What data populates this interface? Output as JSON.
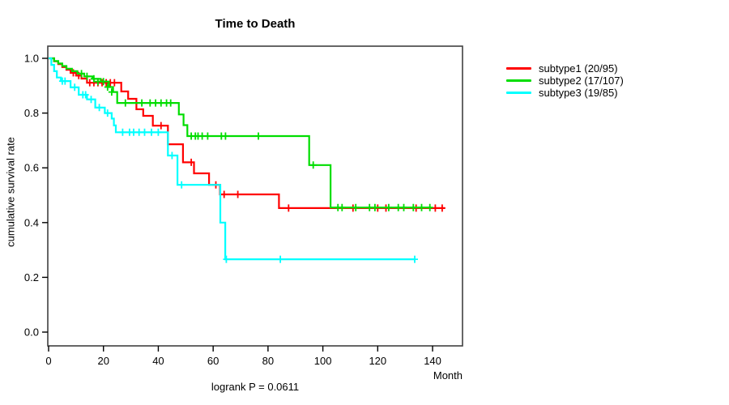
{
  "title": "Time to Death",
  "footer": {
    "logrank_label": "logrank P = 0.0611"
  },
  "axes": {
    "x_label": "Month",
    "y_label": "cumulative survival rate",
    "x_ticks": [
      0,
      20,
      40,
      60,
      80,
      100,
      120,
      140
    ],
    "y_ticks": [
      "0.0",
      "0.2",
      "0.4",
      "0.6",
      "0.8",
      "1.0"
    ]
  },
  "chart_data": {
    "type": "line",
    "variant": "kaplan-meier-step",
    "title": "Time to Death",
    "xlabel": "Month",
    "ylabel": "cumulative survival rate",
    "xlim": [
      0,
      151
    ],
    "ylim": [
      0.0,
      1.0
    ],
    "grid": false,
    "legend_position": "right-outside",
    "annotation": "logrank P = 0.0611",
    "series": [
      {
        "name": "subtype1",
        "label": "subtype1 (20/95)",
        "events": 20,
        "n": 95,
        "color": "#ff0000",
        "end_month": 144.5,
        "steps": [
          [
            0,
            1.0
          ],
          [
            2,
            0.989
          ],
          [
            3.5,
            0.979
          ],
          [
            5,
            0.968
          ],
          [
            6.5,
            0.958
          ],
          [
            8,
            0.947
          ],
          [
            10,
            0.937
          ],
          [
            12,
            0.926
          ],
          [
            14,
            0.911
          ],
          [
            26.5,
            0.879
          ],
          [
            29,
            0.852
          ],
          [
            32,
            0.814
          ],
          [
            34.5,
            0.79
          ],
          [
            38,
            0.754
          ],
          [
            43.5,
            0.686
          ],
          [
            49,
            0.62
          ],
          [
            53,
            0.58
          ],
          [
            58.5,
            0.538
          ],
          [
            62.5,
            0.503
          ],
          [
            84,
            0.453
          ]
        ],
        "censors": [
          [
            9,
            0.947
          ],
          [
            11,
            0.937
          ],
          [
            15,
            0.911
          ],
          [
            16.5,
            0.911
          ],
          [
            18,
            0.911
          ],
          [
            19.5,
            0.911
          ],
          [
            21,
            0.911
          ],
          [
            22.5,
            0.911
          ],
          [
            24,
            0.911
          ],
          [
            41,
            0.754
          ],
          [
            52,
            0.62
          ],
          [
            61,
            0.538
          ],
          [
            64,
            0.503
          ],
          [
            69,
            0.503
          ],
          [
            87.5,
            0.453
          ],
          [
            111,
            0.453
          ],
          [
            120,
            0.453
          ],
          [
            123,
            0.453
          ],
          [
            134,
            0.453
          ],
          [
            141,
            0.453
          ],
          [
            143.5,
            0.453
          ]
        ]
      },
      {
        "name": "subtype2",
        "label": "subtype2 (17/107)",
        "events": 17,
        "n": 107,
        "color": "#00dd00",
        "end_month": 139.5,
        "steps": [
          [
            0,
            1.0
          ],
          [
            2,
            0.99
          ],
          [
            3.5,
            0.981
          ],
          [
            5,
            0.972
          ],
          [
            6.5,
            0.962
          ],
          [
            8.5,
            0.953
          ],
          [
            10.5,
            0.944
          ],
          [
            13,
            0.934
          ],
          [
            16,
            0.925
          ],
          [
            19,
            0.915
          ],
          [
            22,
            0.895
          ],
          [
            23.5,
            0.877
          ],
          [
            25,
            0.837
          ],
          [
            47.5,
            0.795
          ],
          [
            49.2,
            0.756
          ],
          [
            50.6,
            0.716
          ],
          [
            95,
            0.61
          ],
          [
            102.8,
            0.455
          ]
        ],
        "censors": [
          [
            12,
            0.944
          ],
          [
            14,
            0.934
          ],
          [
            16.5,
            0.925
          ],
          [
            18,
            0.915
          ],
          [
            20,
            0.915
          ],
          [
            21.5,
            0.895
          ],
          [
            23,
            0.877
          ],
          [
            28,
            0.837
          ],
          [
            34,
            0.837
          ],
          [
            37,
            0.837
          ],
          [
            39,
            0.837
          ],
          [
            41,
            0.837
          ],
          [
            43,
            0.837
          ],
          [
            44.5,
            0.837
          ],
          [
            52,
            0.716
          ],
          [
            53.5,
            0.716
          ],
          [
            54.5,
            0.716
          ],
          [
            56,
            0.716
          ],
          [
            58,
            0.716
          ],
          [
            63,
            0.716
          ],
          [
            64.5,
            0.716
          ],
          [
            76.5,
            0.716
          ],
          [
            96.5,
            0.61
          ],
          [
            105.5,
            0.455
          ],
          [
            107,
            0.455
          ],
          [
            112,
            0.455
          ],
          [
            117,
            0.455
          ],
          [
            119,
            0.455
          ],
          [
            124,
            0.455
          ],
          [
            127.5,
            0.455
          ],
          [
            129.5,
            0.455
          ],
          [
            133,
            0.455
          ],
          [
            136,
            0.455
          ],
          [
            139,
            0.455
          ]
        ]
      },
      {
        "name": "subtype3",
        "label": "subtype3 (19/85)",
        "events": 19,
        "n": 85,
        "color": "#00ffff",
        "end_month": 133.5,
        "steps": [
          [
            0,
            1.0
          ],
          [
            1,
            0.976
          ],
          [
            2,
            0.953
          ],
          [
            3,
            0.93
          ],
          [
            4.5,
            0.917
          ],
          [
            8,
            0.894
          ],
          [
            11,
            0.867
          ],
          [
            14,
            0.85
          ],
          [
            17,
            0.82
          ],
          [
            20.5,
            0.8
          ],
          [
            23,
            0.78
          ],
          [
            23.8,
            0.755
          ],
          [
            24.5,
            0.73
          ],
          [
            43.5,
            0.645
          ],
          [
            47,
            0.538
          ],
          [
            62.6,
            0.4
          ],
          [
            64.4,
            0.266
          ]
        ],
        "censors": [
          [
            5,
            0.917
          ],
          [
            6,
            0.917
          ],
          [
            9.5,
            0.894
          ],
          [
            12.5,
            0.867
          ],
          [
            13.5,
            0.867
          ],
          [
            15.5,
            0.85
          ],
          [
            18.5,
            0.82
          ],
          [
            21.5,
            0.8
          ],
          [
            27,
            0.73
          ],
          [
            29.5,
            0.73
          ],
          [
            31,
            0.73
          ],
          [
            33,
            0.73
          ],
          [
            35,
            0.73
          ],
          [
            37.5,
            0.73
          ],
          [
            40,
            0.73
          ],
          [
            45,
            0.645
          ],
          [
            48.5,
            0.538
          ],
          [
            64.8,
            0.266
          ],
          [
            84.5,
            0.266
          ],
          [
            133.5,
            0.266
          ]
        ]
      }
    ]
  }
}
